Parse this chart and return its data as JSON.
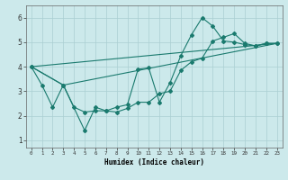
{
  "title": "",
  "xlabel": "Humidex (Indice chaleur)",
  "bg_color": "#cce9eb",
  "grid_color": "#aacfd2",
  "line_color": "#1a7a6e",
  "xlim": [
    -0.5,
    23.5
  ],
  "ylim": [
    0.7,
    6.5
  ],
  "xticks": [
    0,
    1,
    2,
    3,
    4,
    5,
    6,
    7,
    8,
    9,
    10,
    11,
    12,
    13,
    14,
    15,
    16,
    17,
    18,
    19,
    20,
    21,
    22,
    23
  ],
  "yticks": [
    1,
    2,
    3,
    4,
    5,
    6
  ],
  "line1_x": [
    0,
    1,
    2,
    3,
    4,
    5,
    6,
    7,
    8,
    9,
    10,
    11,
    12,
    13,
    14,
    15,
    16,
    17,
    18,
    19,
    20,
    21,
    22,
    23
  ],
  "line1_y": [
    4.0,
    3.25,
    2.35,
    3.25,
    2.35,
    2.15,
    2.2,
    2.2,
    2.35,
    2.45,
    3.9,
    3.95,
    2.55,
    3.35,
    4.45,
    5.3,
    6.0,
    5.65,
    5.05,
    5.0,
    4.9,
    4.85,
    4.95,
    4.95
  ],
  "line2_x": [
    0,
    3,
    5,
    6,
    7,
    8,
    9,
    10,
    11,
    12,
    13,
    14,
    15,
    16,
    17,
    18,
    19,
    20,
    21,
    22,
    23
  ],
  "line2_y": [
    4.0,
    3.25,
    1.4,
    2.35,
    2.2,
    2.15,
    2.3,
    2.55,
    2.55,
    2.9,
    3.0,
    3.85,
    4.2,
    4.35,
    5.05,
    5.2,
    5.35,
    4.95,
    4.85,
    4.95,
    4.95
  ],
  "line3_x": [
    0,
    23
  ],
  "line3_y": [
    4.0,
    4.95
  ],
  "line4_x": [
    0,
    3,
    23
  ],
  "line4_y": [
    4.0,
    3.25,
    4.95
  ]
}
